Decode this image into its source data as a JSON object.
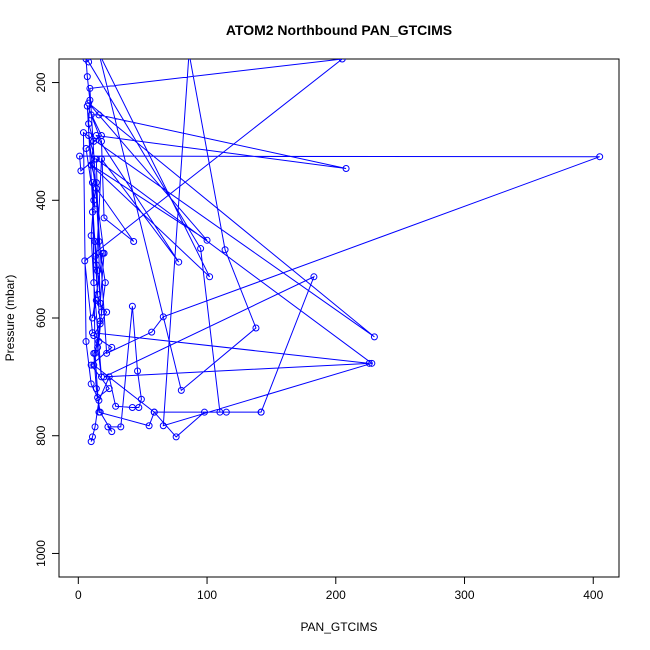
{
  "chart_data": {
    "type": "line",
    "title": "ATOM2 Northbound PAN_GTCIMS",
    "xlabel": "PAN_GTCIMS",
    "ylabel": "Pressure (mbar)",
    "xlim": [
      -15,
      420
    ],
    "ylim": [
      1040,
      160
    ],
    "y_reversed": true,
    "x_ticks": [
      0,
      100,
      200,
      300,
      400
    ],
    "y_ticks": [
      200,
      400,
      600,
      800,
      1000
    ],
    "grid": false,
    "legend": "none",
    "series": [
      {
        "marker": "open-circle",
        "color": "#0000ff",
        "points": [
          [
            10,
            810
          ],
          [
            11,
            802
          ],
          [
            13,
            785
          ],
          [
            16,
            740
          ],
          [
            24,
            700
          ],
          [
            29,
            750
          ],
          [
            42,
            752
          ],
          [
            47,
            752
          ],
          [
            49,
            738
          ],
          [
            46,
            690
          ],
          [
            42,
            580
          ],
          [
            33,
            785
          ],
          [
            23,
            785
          ],
          [
            26,
            793
          ],
          [
            17,
            760
          ],
          [
            14,
            720
          ],
          [
            12,
            660
          ],
          [
            16,
            640
          ],
          [
            18,
            590
          ],
          [
            15,
            520
          ],
          [
            13,
            470
          ],
          [
            11,
            420
          ],
          [
            14,
            370
          ],
          [
            10,
            340
          ],
          [
            12,
            300
          ],
          [
            8,
            270
          ],
          [
            9,
            230
          ],
          [
            7,
            190
          ],
          [
            6,
            160
          ],
          [
            8,
            165
          ],
          [
            95,
            482
          ],
          [
            110,
            760
          ],
          [
            142,
            760
          ],
          [
            183,
            530
          ],
          [
            20,
            700
          ],
          [
            226,
            677
          ],
          [
            11,
            625
          ],
          [
            5,
            503
          ],
          [
            205,
            160
          ],
          [
            9,
            210
          ],
          [
            16,
            470
          ],
          [
            21,
            540
          ],
          [
            17,
            610
          ],
          [
            15,
            560
          ],
          [
            13,
            495
          ],
          [
            19,
            490
          ],
          [
            11,
            600
          ],
          [
            14,
            570
          ],
          [
            22,
            590
          ],
          [
            12,
            630
          ],
          [
            26,
            650
          ],
          [
            10,
            680
          ],
          [
            24,
            720
          ],
          [
            15,
            735
          ],
          [
            10,
            712
          ],
          [
            6,
            640
          ],
          [
            4,
            285
          ],
          [
            230,
            632
          ],
          [
            8,
            235
          ],
          [
            100,
            468
          ],
          [
            10,
            340
          ],
          [
            102,
            530
          ],
          [
            16,
            150
          ],
          [
            80,
            723
          ],
          [
            138,
            617
          ],
          [
            114,
            484
          ],
          [
            86,
            150
          ],
          [
            66,
            783
          ],
          [
            228,
            677
          ],
          [
            14,
            330
          ],
          [
            17,
            575
          ],
          [
            20,
            490
          ],
          [
            8,
            290
          ],
          [
            13,
            330
          ],
          [
            2,
            350
          ],
          [
            1,
            325
          ],
          [
            405,
            326
          ],
          [
            66,
            598
          ],
          [
            57,
            624
          ],
          [
            22,
            660
          ],
          [
            14,
            380
          ],
          [
            43,
            470
          ],
          [
            20,
            430
          ],
          [
            18,
            300
          ],
          [
            10,
            255
          ],
          [
            16,
            255
          ],
          [
            208,
            346
          ],
          [
            14,
            290
          ],
          [
            78,
            505
          ],
          [
            18,
            330
          ],
          [
            14,
            510
          ],
          [
            15,
            560
          ],
          [
            7,
            240
          ],
          [
            18,
            290
          ],
          [
            6,
            312
          ],
          [
            13,
            415
          ],
          [
            11,
            370
          ],
          [
            13,
            660
          ],
          [
            16,
            760
          ],
          [
            55,
            783
          ],
          [
            59,
            760
          ],
          [
            76,
            802
          ],
          [
            98,
            760
          ],
          [
            115,
            760
          ],
          [
            142,
            760
          ],
          [
            59,
            760
          ],
          [
            12,
            680
          ],
          [
            17,
            605
          ],
          [
            15,
            650
          ],
          [
            18,
            700
          ],
          [
            12,
            540
          ],
          [
            10,
            460
          ],
          [
            12,
            400
          ]
        ]
      }
    ]
  }
}
